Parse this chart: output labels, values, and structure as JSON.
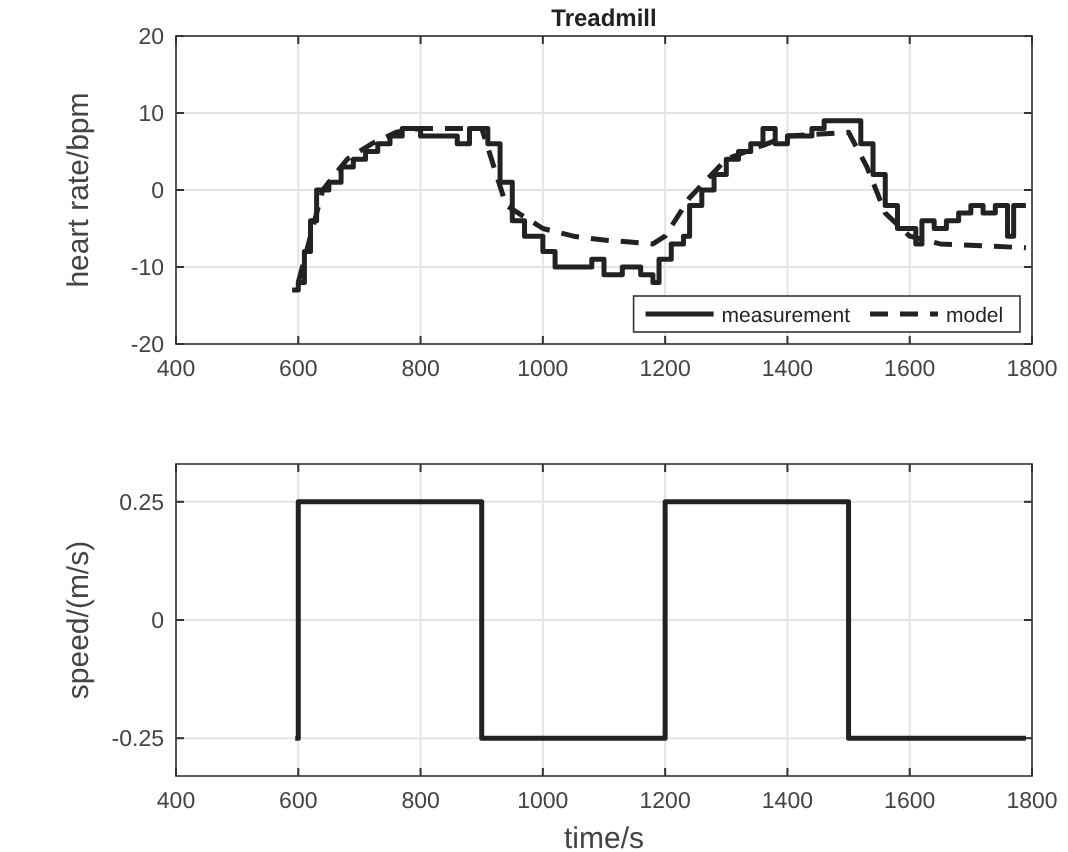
{
  "chart_data": [
    {
      "type": "step",
      "title": "Treadmill",
      "ylabel": "heart rate/bpm",
      "xlim": [
        400,
        1800
      ],
      "xticks": [
        400,
        600,
        800,
        1000,
        1200,
        1400,
        1600,
        1800
      ],
      "ylim": [
        -20,
        20
      ],
      "yticks": [
        -20,
        -10,
        0,
        10,
        20
      ],
      "grid": true,
      "legend": "bottom right",
      "series": [
        {
          "name": "measurement",
          "color": "#222222",
          "line_style": "solid",
          "x": [
            590,
            600,
            610,
            620,
            630,
            650,
            670,
            690,
            710,
            730,
            750,
            770,
            800,
            830,
            860,
            880,
            900,
            910,
            930,
            950,
            970,
            1000,
            1020,
            1050,
            1080,
            1100,
            1130,
            1160,
            1180,
            1190,
            1210,
            1230,
            1240,
            1260,
            1280,
            1300,
            1320,
            1340,
            1360,
            1380,
            1400,
            1420,
            1440,
            1460,
            1480,
            1500,
            1520,
            1540,
            1560,
            1580,
            1600,
            1610,
            1620,
            1640,
            1660,
            1680,
            1700,
            1720,
            1740,
            1760,
            1770,
            1790
          ],
          "values": [
            -13,
            -12,
            -8,
            -4,
            0,
            1,
            3,
            4,
            5,
            6,
            7,
            8,
            7,
            7,
            6,
            8,
            8,
            6,
            1,
            -4,
            -6,
            -8,
            -10,
            -10,
            -9,
            -11,
            -10,
            -11,
            -12,
            -9,
            -7,
            -6,
            -2,
            0,
            2,
            4,
            5,
            6,
            8,
            6,
            7,
            7,
            8,
            9,
            9,
            9,
            6,
            2,
            -2,
            -5,
            -5,
            -7,
            -4,
            -5,
            -4,
            -3,
            -2,
            -3,
            -2,
            -6,
            -2,
            -2
          ]
        },
        {
          "name": "model",
          "color": "#222222",
          "line_style": "dashed",
          "type": "line",
          "x": [
            600,
            640,
            680,
            720,
            760,
            800,
            900,
            940,
            1000,
            1050,
            1100,
            1180,
            1200,
            1240,
            1300,
            1400,
            1500,
            1530,
            1560,
            1600,
            1650,
            1790
          ],
          "values": [
            -12,
            0,
            4,
            6,
            7.5,
            8,
            8,
            -2,
            -5,
            -6,
            -6.5,
            -7,
            -6,
            -1,
            4,
            7,
            7.5,
            3,
            -3,
            -6,
            -7,
            -7.5
          ]
        }
      ]
    },
    {
      "type": "step",
      "xlabel": "time/s",
      "ylabel": "speed/(m/s)",
      "xlim": [
        400,
        1800
      ],
      "xticks": [
        400,
        600,
        800,
        1000,
        1200,
        1400,
        1600,
        1800
      ],
      "ylim": [
        -0.33,
        0.33
      ],
      "yticks": [
        -0.25,
        0,
        0.25
      ],
      "grid": true,
      "series": [
        {
          "color": "#222222",
          "line_style": "solid",
          "x": [
            595,
            600,
            900,
            1200,
            1500,
            1790
          ],
          "values": [
            -0.25,
            0.25,
            -0.25,
            0.25,
            -0.25,
            -0.25
          ]
        }
      ]
    }
  ]
}
